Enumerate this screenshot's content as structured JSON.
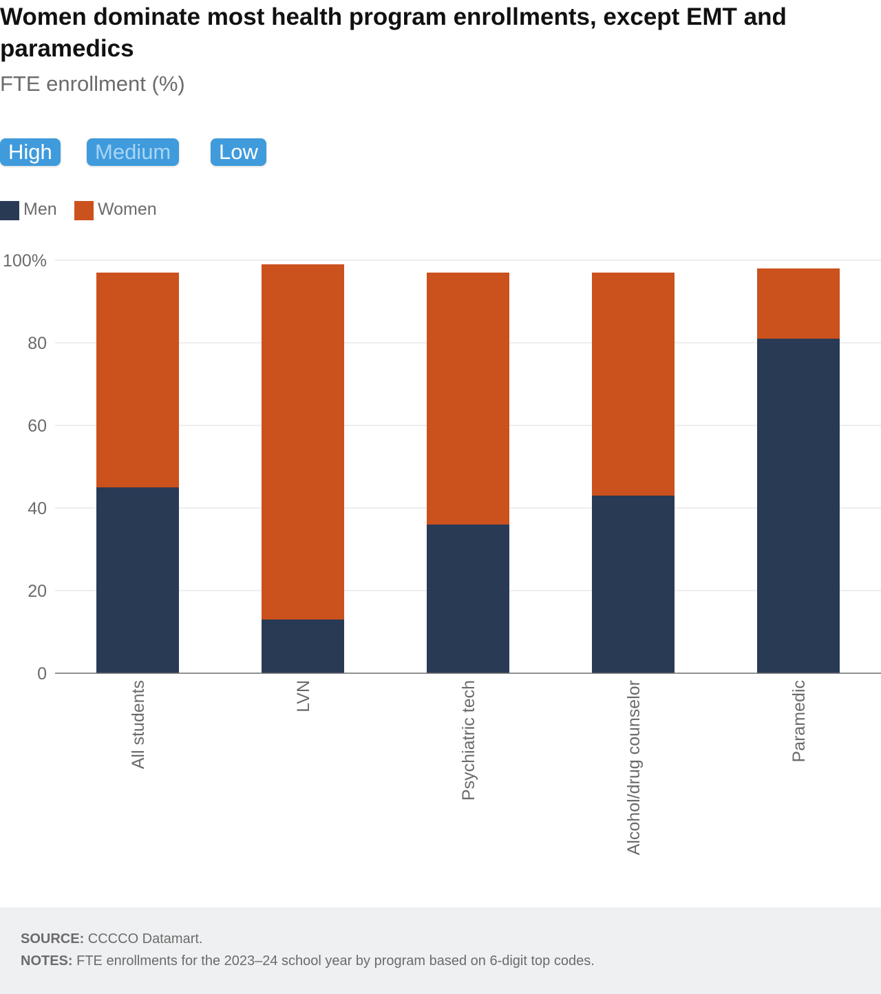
{
  "header": {
    "title": "Women dominate most health program enrollments, except EMT and paramedics",
    "subtitle": "FTE enrollment (%)"
  },
  "toggles": [
    {
      "label": "High",
      "state": "normal"
    },
    {
      "label": "Medium",
      "state": "dim"
    },
    {
      "label": "Low",
      "state": "normal"
    }
  ],
  "colors": {
    "men": "#293a55",
    "women": "#cb511d",
    "toggle_bg": "#3f9bdc"
  },
  "chart_data": {
    "type": "bar",
    "stacked": true,
    "categories": [
      "All students",
      "LVN",
      "Psychiatric tech",
      "Alcohol/drug counselor",
      "Paramedic"
    ],
    "series": [
      {
        "name": "Men",
        "values": [
          45,
          13,
          36,
          43,
          81
        ]
      },
      {
        "name": "Women",
        "values": [
          52,
          86,
          61,
          54,
          17
        ]
      }
    ],
    "yticks": [
      "0",
      "20",
      "40",
      "60",
      "80",
      "100%"
    ],
    "ylim": [
      0,
      100
    ],
    "grid": true,
    "legend": "top-left"
  },
  "footer": {
    "source_label": "SOURCE:",
    "source_text": " CCCCO Datamart.",
    "notes_label": "NOTES:",
    "notes_text": " FTE enrollments for the 2023–24 school year by program based on 6-digit top codes."
  }
}
